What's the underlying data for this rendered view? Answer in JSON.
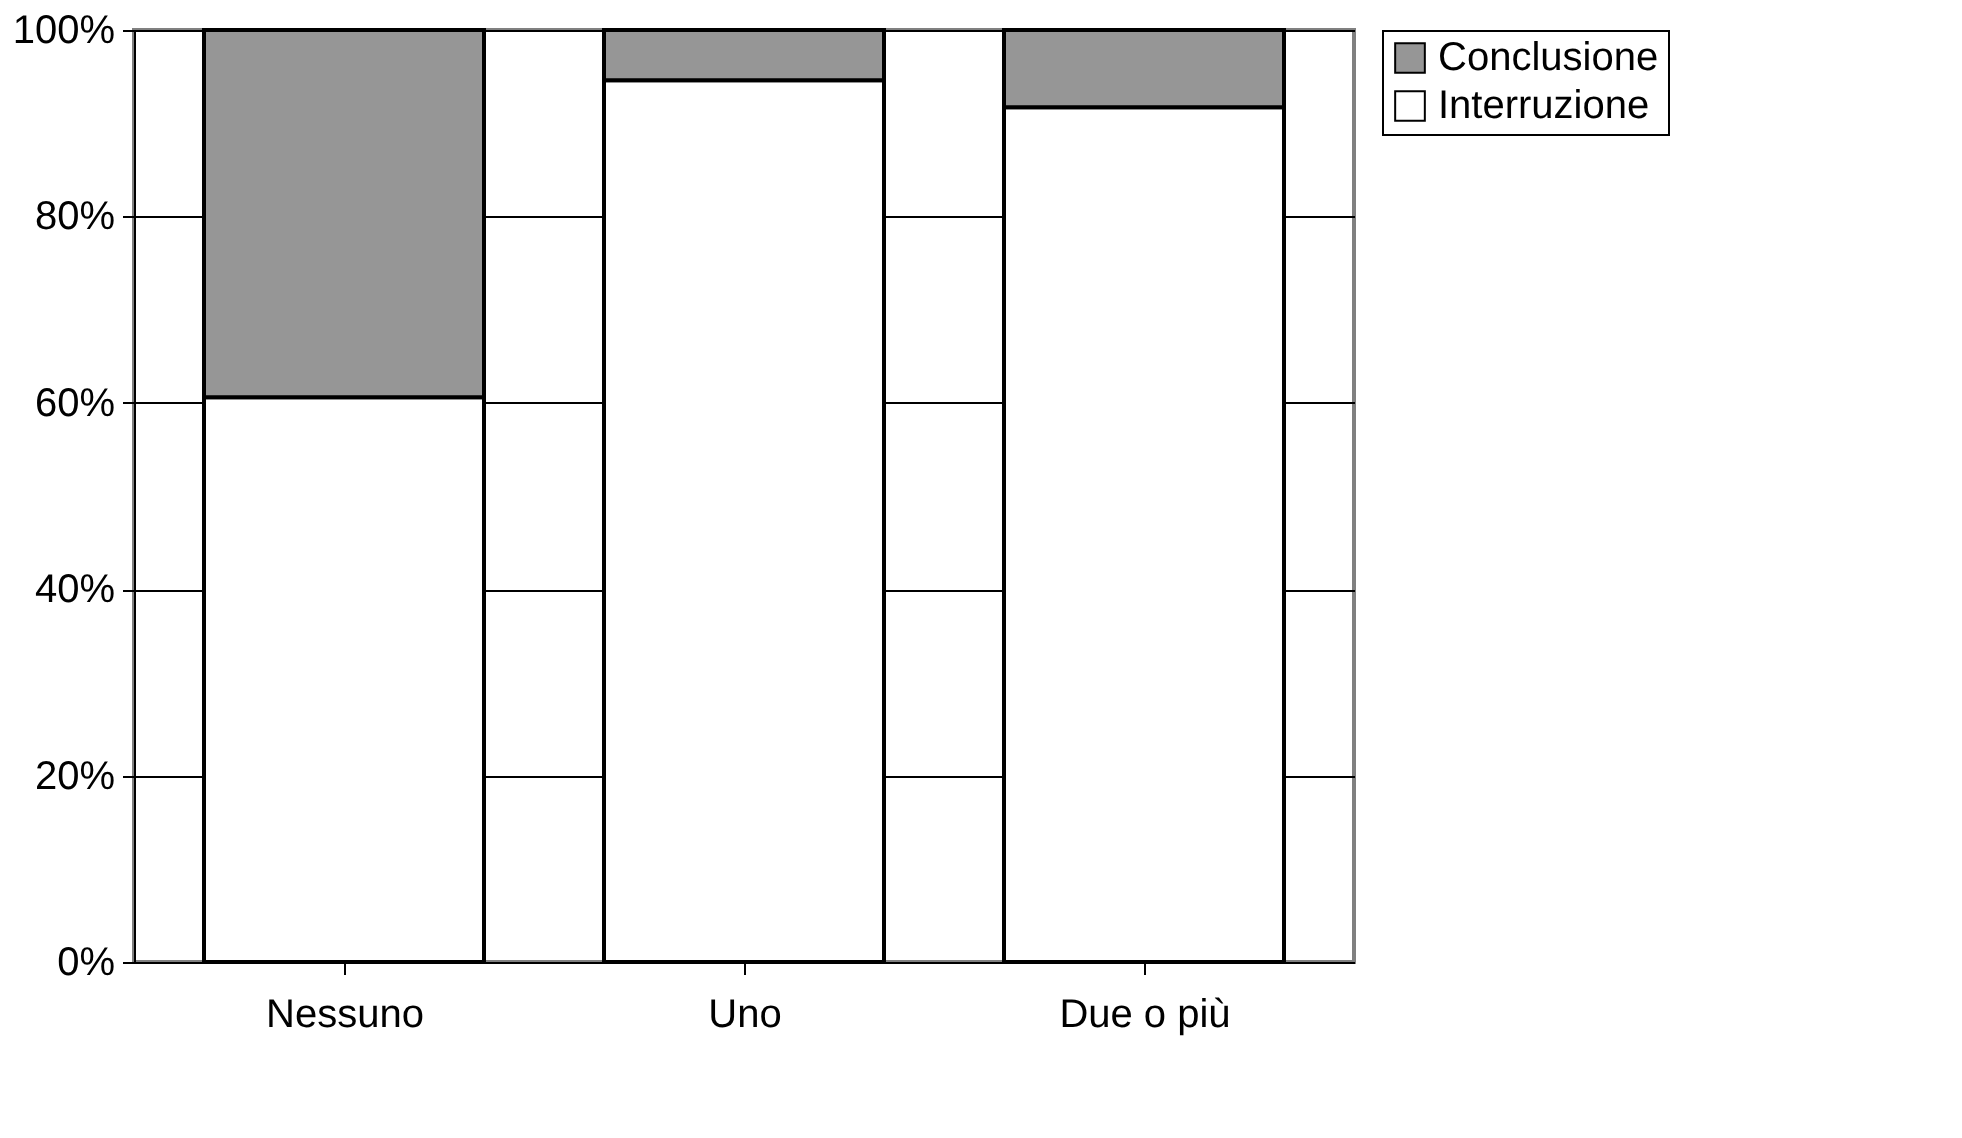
{
  "chart_data": {
    "type": "bar",
    "stacked": true,
    "categories": [
      "Nessuno",
      "Uno",
      "Due o più"
    ],
    "series": [
      {
        "name": "Interruzione",
        "color": "#ffffff",
        "values": [
          60.6,
          94.6,
          91.7
        ]
      },
      {
        "name": "Conclusione",
        "color": "#969696",
        "values": [
          39.4,
          5.4,
          8.3
        ]
      }
    ],
    "ylim": [
      0,
      100
    ],
    "yticks": [
      {
        "value": 0,
        "label": "0%"
      },
      {
        "value": 20,
        "label": "20%"
      },
      {
        "value": 40,
        "label": "40%"
      },
      {
        "value": 60,
        "label": "60%"
      },
      {
        "value": 80,
        "label": "80%"
      },
      {
        "value": 100,
        "label": "100%"
      }
    ],
    "grid": "y",
    "legend": "top right"
  }
}
